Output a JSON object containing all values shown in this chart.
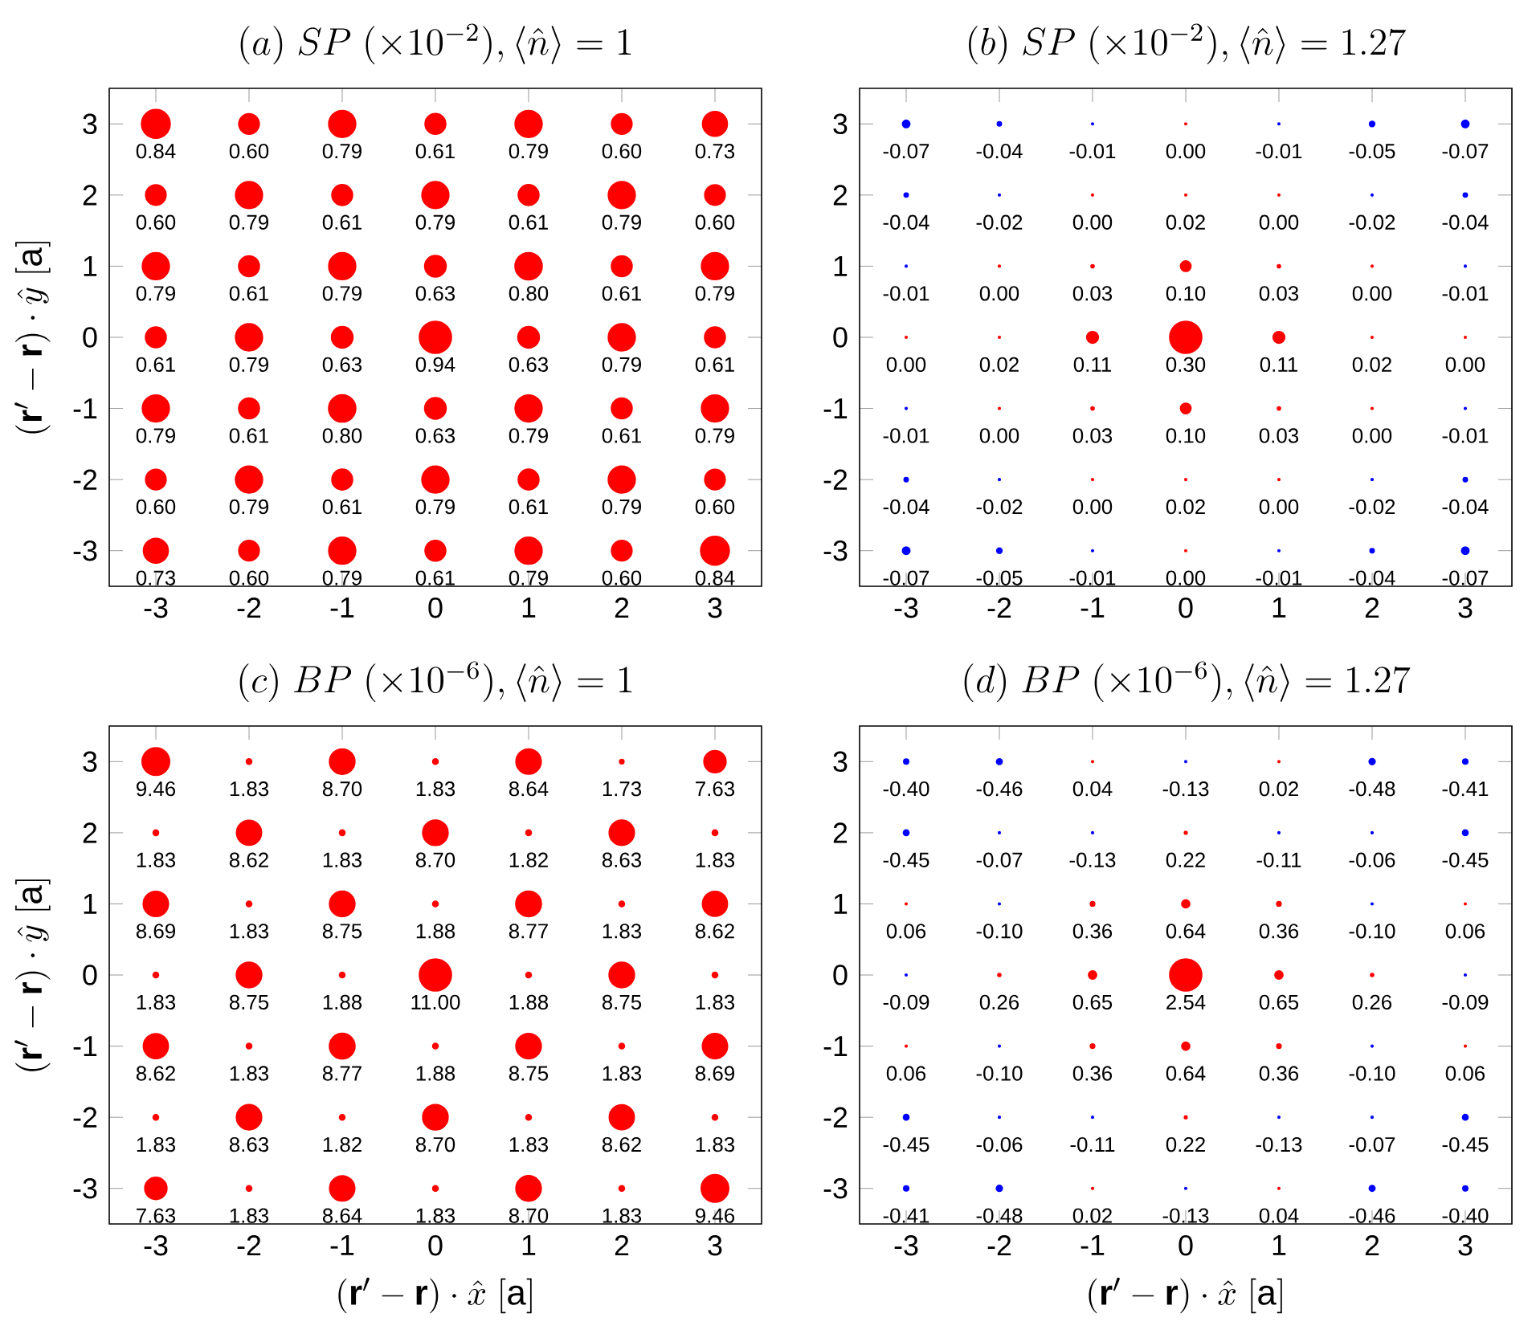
{
  "chart_data": [
    {
      "type": "bubble",
      "title": "(a)\\ SP\\ (\\times 10^{-2}),\\langle \\hat{n}\\rangle = 1",
      "ylabel": "(\\mathbf{r}'-\\mathbf{r})\\cdot\\hat{y}\\ [\\mathrm{a}]",
      "x": [
        -3,
        -2,
        -1,
        0,
        1,
        2,
        3
      ],
      "xlim": [
        -3.5,
        3.5
      ],
      "ylim": [
        -3.5,
        3.5
      ],
      "xticks": [
        -3,
        -2,
        -1,
        0,
        1,
        2,
        3
      ],
      "yticks": [
        -3,
        -2,
        -1,
        0,
        1,
        2,
        3
      ],
      "series": [
        {
          "values": [
            3,
            3,
            3,
            3,
            3,
            3,
            3
          ],
          "sizes": [
            0.8,
            0.41,
            0.71,
            0.42,
            0.71,
            0.41,
            0.6
          ],
          "colors": [
            "#ff0000",
            "#ff0000",
            "#ff0000",
            "#ff0000",
            "#ff0000",
            "#ff0000",
            "#ff0000"
          ]
        },
        {
          "values": [
            2,
            2,
            2,
            2,
            2,
            2,
            2
          ],
          "sizes": [
            0.41,
            0.71,
            0.42,
            0.71,
            0.42,
            0.71,
            0.41
          ],
          "colors": [
            "#ff0000",
            "#ff0000",
            "#ff0000",
            "#ff0000",
            "#ff0000",
            "#ff0000",
            "#ff0000"
          ]
        },
        {
          "values": [
            1,
            1,
            1,
            1,
            1,
            1,
            1
          ],
          "sizes": [
            0.71,
            0.42,
            0.71,
            0.45,
            0.72,
            0.42,
            0.71
          ],
          "colors": [
            "#ff0000",
            "#ff0000",
            "#ff0000",
            "#ff0000",
            "#ff0000",
            "#ff0000",
            "#ff0000"
          ]
        },
        {
          "values": [
            0,
            0,
            0,
            0,
            0,
            0,
            0
          ],
          "sizes": [
            0.42,
            0.71,
            0.45,
            1,
            0.45,
            0.71,
            0.42
          ],
          "colors": [
            "#ff0000",
            "#ff0000",
            "#ff0000",
            "#ff0000",
            "#ff0000",
            "#ff0000",
            "#ff0000"
          ]
        },
        {
          "values": [
            -1,
            -1,
            -1,
            -1,
            -1,
            -1,
            -1
          ],
          "sizes": [
            0.71,
            0.42,
            0.72,
            0.45,
            0.71,
            0.42,
            0.71
          ],
          "colors": [
            "#ff0000",
            "#ff0000",
            "#ff0000",
            "#ff0000",
            "#ff0000",
            "#ff0000",
            "#ff0000"
          ]
        },
        {
          "values": [
            -2,
            -2,
            -2,
            -2,
            -2,
            -2,
            -2
          ],
          "sizes": [
            0.41,
            0.71,
            0.42,
            0.71,
            0.42,
            0.71,
            0.41
          ],
          "colors": [
            "#ff0000",
            "#ff0000",
            "#ff0000",
            "#ff0000",
            "#ff0000",
            "#ff0000",
            "#ff0000"
          ]
        },
        {
          "values": [
            -3,
            -3,
            -3,
            -3,
            -3,
            -3,
            -3
          ],
          "sizes": [
            0.6,
            0.41,
            0.71,
            0.42,
            0.71,
            0.41,
            0.8
          ],
          "colors": [
            "#ff0000",
            "#ff0000",
            "#ff0000",
            "#ff0000",
            "#ff0000",
            "#ff0000",
            "#ff0000"
          ]
        }
      ],
      "annotations": [
        {
          "text": "0.84",
          "x": -3,
          "y": 3
        },
        {
          "text": "0.60",
          "x": -2,
          "y": 3
        },
        {
          "text": "0.79",
          "x": -1,
          "y": 3
        },
        {
          "text": "0.61",
          "x": 0,
          "y": 3
        },
        {
          "text": "0.79",
          "x": 1,
          "y": 3
        },
        {
          "text": "0.60",
          "x": 2,
          "y": 3
        },
        {
          "text": "0.73",
          "x": 3,
          "y": 3
        },
        {
          "text": "0.60",
          "x": -3,
          "y": 2
        },
        {
          "text": "0.79",
          "x": -2,
          "y": 2
        },
        {
          "text": "0.61",
          "x": -1,
          "y": 2
        },
        {
          "text": "0.79",
          "x": 0,
          "y": 2
        },
        {
          "text": "0.61",
          "x": 1,
          "y": 2
        },
        {
          "text": "0.79",
          "x": 2,
          "y": 2
        },
        {
          "text": "0.60",
          "x": 3,
          "y": 2
        },
        {
          "text": "0.79",
          "x": -3,
          "y": 1
        },
        {
          "text": "0.61",
          "x": -2,
          "y": 1
        },
        {
          "text": "0.79",
          "x": -1,
          "y": 1
        },
        {
          "text": "0.63",
          "x": 0,
          "y": 1
        },
        {
          "text": "0.80",
          "x": 1,
          "y": 1
        },
        {
          "text": "0.61",
          "x": 2,
          "y": 1
        },
        {
          "text": "0.79",
          "x": 3,
          "y": 1
        },
        {
          "text": "0.61",
          "x": -3,
          "y": 0
        },
        {
          "text": "0.79",
          "x": -2,
          "y": 0
        },
        {
          "text": "0.63",
          "x": -1,
          "y": 0
        },
        {
          "text": "0.94",
          "x": 0,
          "y": 0
        },
        {
          "text": "0.63",
          "x": 1,
          "y": 0
        },
        {
          "text": "0.79",
          "x": 2,
          "y": 0
        },
        {
          "text": "0.61",
          "x": 3,
          "y": 0
        },
        {
          "text": "0.79",
          "x": -3,
          "y": -1
        },
        {
          "text": "0.61",
          "x": -2,
          "y": -1
        },
        {
          "text": "0.80",
          "x": -1,
          "y": -1
        },
        {
          "text": "0.63",
          "x": 0,
          "y": -1
        },
        {
          "text": "0.79",
          "x": 1,
          "y": -1
        },
        {
          "text": "0.61",
          "x": 2,
          "y": -1
        },
        {
          "text": "0.79",
          "x": 3,
          "y": -1
        },
        {
          "text": "0.60",
          "x": -3,
          "y": -2
        },
        {
          "text": "0.79",
          "x": -2,
          "y": -2
        },
        {
          "text": "0.61",
          "x": -1,
          "y": -2
        },
        {
          "text": "0.79",
          "x": 0,
          "y": -2
        },
        {
          "text": "0.61",
          "x": 1,
          "y": -2
        },
        {
          "text": "0.79",
          "x": 2,
          "y": -2
        },
        {
          "text": "0.60",
          "x": 3,
          "y": -2
        },
        {
          "text": "0.73",
          "x": -3,
          "y": -3
        },
        {
          "text": "0.60",
          "x": -2,
          "y": -3
        },
        {
          "text": "0.79",
          "x": -1,
          "y": -3
        },
        {
          "text": "0.61",
          "x": 0,
          "y": -3
        },
        {
          "text": "0.79",
          "x": 1,
          "y": -3
        },
        {
          "text": "0.60",
          "x": 2,
          "y": -3
        },
        {
          "text": "0.84",
          "x": 3,
          "y": -3
        }
      ]
    },
    {
      "type": "bubble",
      "title": "(b)\\ SP\\ (\\times 10^{-2}),\\langle \\hat{n}\\rangle = 1.27",
      "x": [
        -3,
        -2,
        -1,
        0,
        1,
        2,
        3
      ],
      "xlim": [
        -3.5,
        3.5
      ],
      "ylim": [
        -3.5,
        3.5
      ],
      "xticks": [
        -3,
        -2,
        -1,
        0,
        1,
        2,
        3
      ],
      "yticks": [
        -3,
        -2,
        -1,
        0,
        1,
        2,
        3
      ],
      "series": [
        {
          "values": [
            3,
            3,
            3,
            3,
            3,
            3,
            3
          ],
          "sizes": [
            0.054,
            0.018,
            0.004,
            0.004,
            0.004,
            0.028,
            0.054
          ],
          "colors": [
            "#0000ff",
            "#0000ff",
            "#0000ff",
            "#ff0000",
            "#0000ff",
            "#0000ff",
            "#0000ff"
          ]
        },
        {
          "values": [
            2,
            2,
            2,
            2,
            2,
            2,
            2
          ],
          "sizes": [
            0.018,
            0.004,
            0.004,
            0.004,
            0.004,
            0.004,
            0.018
          ],
          "colors": [
            "#0000ff",
            "#0000ff",
            "#ff0000",
            "#ff0000",
            "#ff0000",
            "#0000ff",
            "#0000ff"
          ]
        },
        {
          "values": [
            1,
            1,
            1,
            1,
            1,
            1,
            1
          ],
          "sizes": [
            0.004,
            0.004,
            0.01,
            0.11,
            0.01,
            0.004,
            0.004
          ],
          "colors": [
            "#0000ff",
            "#ff0000",
            "#ff0000",
            "#ff0000",
            "#ff0000",
            "#ff0000",
            "#0000ff"
          ]
        },
        {
          "values": [
            0,
            0,
            0,
            0,
            0,
            0,
            0
          ],
          "sizes": [
            0.004,
            0.004,
            0.134,
            1,
            0.134,
            0.004,
            0.004
          ],
          "colors": [
            "#ff0000",
            "#ff0000",
            "#ff0000",
            "#ff0000",
            "#ff0000",
            "#ff0000",
            "#ff0000"
          ]
        },
        {
          "values": [
            -1,
            -1,
            -1,
            -1,
            -1,
            -1,
            -1
          ],
          "sizes": [
            0.004,
            0.004,
            0.01,
            0.11,
            0.01,
            0.004,
            0.004
          ],
          "colors": [
            "#0000ff",
            "#ff0000",
            "#ff0000",
            "#ff0000",
            "#ff0000",
            "#ff0000",
            "#0000ff"
          ]
        },
        {
          "values": [
            -2,
            -2,
            -2,
            -2,
            -2,
            -2,
            -2
          ],
          "sizes": [
            0.018,
            0.004,
            0.004,
            0.004,
            0.004,
            0.004,
            0.018
          ],
          "colors": [
            "#0000ff",
            "#0000ff",
            "#ff0000",
            "#ff0000",
            "#ff0000",
            "#0000ff",
            "#0000ff"
          ]
        },
        {
          "values": [
            -3,
            -3,
            -3,
            -3,
            -3,
            -3,
            -3
          ],
          "sizes": [
            0.054,
            0.028,
            0.004,
            0.004,
            0.004,
            0.018,
            0.054
          ],
          "colors": [
            "#0000ff",
            "#0000ff",
            "#0000ff",
            "#ff0000",
            "#0000ff",
            "#0000ff",
            "#0000ff"
          ]
        }
      ],
      "annotations": [
        {
          "text": "-0.07",
          "x": -3,
          "y": 3
        },
        {
          "text": "-0.04",
          "x": -2,
          "y": 3
        },
        {
          "text": "-0.01",
          "x": -1,
          "y": 3
        },
        {
          "text": "0.00",
          "x": 0,
          "y": 3
        },
        {
          "text": "-0.01",
          "x": 1,
          "y": 3
        },
        {
          "text": "-0.05",
          "x": 2,
          "y": 3
        },
        {
          "text": "-0.07",
          "x": 3,
          "y": 3
        },
        {
          "text": "-0.04",
          "x": -3,
          "y": 2
        },
        {
          "text": "-0.02",
          "x": -2,
          "y": 2
        },
        {
          "text": "0.00",
          "x": -1,
          "y": 2
        },
        {
          "text": "0.02",
          "x": 0,
          "y": 2
        },
        {
          "text": "0.00",
          "x": 1,
          "y": 2
        },
        {
          "text": "-0.02",
          "x": 2,
          "y": 2
        },
        {
          "text": "-0.04",
          "x": 3,
          "y": 2
        },
        {
          "text": "-0.01",
          "x": -3,
          "y": 1
        },
        {
          "text": "0.00",
          "x": -2,
          "y": 1
        },
        {
          "text": "0.03",
          "x": -1,
          "y": 1
        },
        {
          "text": "0.10",
          "x": 0,
          "y": 1
        },
        {
          "text": "0.03",
          "x": 1,
          "y": 1
        },
        {
          "text": "0.00",
          "x": 2,
          "y": 1
        },
        {
          "text": "-0.01",
          "x": 3,
          "y": 1
        },
        {
          "text": "0.00",
          "x": -3,
          "y": 0
        },
        {
          "text": "0.02",
          "x": -2,
          "y": 0
        },
        {
          "text": "0.11",
          "x": -1,
          "y": 0
        },
        {
          "text": "0.30",
          "x": 0,
          "y": 0
        },
        {
          "text": "0.11",
          "x": 1,
          "y": 0
        },
        {
          "text": "0.02",
          "x": 2,
          "y": 0
        },
        {
          "text": "0.00",
          "x": 3,
          "y": 0
        },
        {
          "text": "-0.01",
          "x": -3,
          "y": -1
        },
        {
          "text": "0.00",
          "x": -2,
          "y": -1
        },
        {
          "text": "0.03",
          "x": -1,
          "y": -1
        },
        {
          "text": "0.10",
          "x": 0,
          "y": -1
        },
        {
          "text": "0.03",
          "x": 1,
          "y": -1
        },
        {
          "text": "0.00",
          "x": 2,
          "y": -1
        },
        {
          "text": "-0.01",
          "x": 3,
          "y": -1
        },
        {
          "text": "-0.04",
          "x": -3,
          "y": -2
        },
        {
          "text": "-0.02",
          "x": -2,
          "y": -2
        },
        {
          "text": "0.00",
          "x": -1,
          "y": -2
        },
        {
          "text": "0.02",
          "x": 0,
          "y": -2
        },
        {
          "text": "0.00",
          "x": 1,
          "y": -2
        },
        {
          "text": "-0.02",
          "x": 2,
          "y": -2
        },
        {
          "text": "-0.04",
          "x": 3,
          "y": -2
        },
        {
          "text": "-0.07",
          "x": -3,
          "y": -3
        },
        {
          "text": "-0.05",
          "x": -2,
          "y": -3
        },
        {
          "text": "-0.01",
          "x": -1,
          "y": -3
        },
        {
          "text": "0.00",
          "x": 0,
          "y": -3
        },
        {
          "text": "-0.01",
          "x": 1,
          "y": -3
        },
        {
          "text": "-0.04",
          "x": 2,
          "y": -3
        },
        {
          "text": "-0.07",
          "x": 3,
          "y": -3
        }
      ]
    },
    {
      "type": "bubble",
      "title": "(c)\\ BP\\ (\\times 10^{-6}),\\langle \\hat{n}\\rangle = 1",
      "xlabel": "(\\mathbf{r}'-\\mathbf{r})\\cdot\\hat{x}\\ [\\mathrm{a}]",
      "ylabel": "(\\mathbf{r}'-\\mathbf{r})\\cdot\\hat{y}\\ [\\mathrm{a}]",
      "x": [
        -3,
        -2,
        -1,
        0,
        1,
        2,
        3
      ],
      "xlim": [
        -3.5,
        3.5
      ],
      "ylim": [
        -3.5,
        3.5
      ],
      "xticks": [
        -3,
        -2,
        -1,
        0,
        1,
        2,
        3
      ],
      "yticks": [
        -3,
        -2,
        -1,
        0,
        1,
        2,
        3
      ],
      "series": [
        {
          "values": [
            3,
            3,
            3,
            3,
            3,
            3,
            3
          ],
          "sizes": [
            0.74,
            0.03,
            0.63,
            0.03,
            0.62,
            0.02,
            0.48
          ],
          "colors": [
            "#ff0000",
            "#ff0000",
            "#ff0000",
            "#ff0000",
            "#ff0000",
            "#ff0000",
            "#ff0000"
          ]
        },
        {
          "values": [
            2,
            2,
            2,
            2,
            2,
            2,
            2
          ],
          "sizes": [
            0.03,
            0.61,
            0.03,
            0.63,
            0.03,
            0.62,
            0.03
          ],
          "colors": [
            "#ff0000",
            "#ff0000",
            "#ff0000",
            "#ff0000",
            "#ff0000",
            "#ff0000",
            "#ff0000"
          ]
        },
        {
          "values": [
            1,
            1,
            1,
            1,
            1,
            1,
            1
          ],
          "sizes": [
            0.62,
            0.03,
            0.63,
            0.03,
            0.64,
            0.03,
            0.61
          ],
          "colors": [
            "#ff0000",
            "#ff0000",
            "#ff0000",
            "#ff0000",
            "#ff0000",
            "#ff0000",
            "#ff0000"
          ]
        },
        {
          "values": [
            0,
            0,
            0,
            0,
            0,
            0,
            0
          ],
          "sizes": [
            0.03,
            0.63,
            0.03,
            1,
            0.03,
            0.63,
            0.03
          ],
          "colors": [
            "#ff0000",
            "#ff0000",
            "#ff0000",
            "#ff0000",
            "#ff0000",
            "#ff0000",
            "#ff0000"
          ]
        },
        {
          "values": [
            -1,
            -1,
            -1,
            -1,
            -1,
            -1,
            -1
          ],
          "sizes": [
            0.61,
            0.03,
            0.64,
            0.03,
            0.63,
            0.03,
            0.62
          ],
          "colors": [
            "#ff0000",
            "#ff0000",
            "#ff0000",
            "#ff0000",
            "#ff0000",
            "#ff0000",
            "#ff0000"
          ]
        },
        {
          "values": [
            -2,
            -2,
            -2,
            -2,
            -2,
            -2,
            -2
          ],
          "sizes": [
            0.03,
            0.62,
            0.03,
            0.63,
            0.03,
            0.61,
            0.03
          ],
          "colors": [
            "#ff0000",
            "#ff0000",
            "#ff0000",
            "#ff0000",
            "#ff0000",
            "#ff0000",
            "#ff0000"
          ]
        },
        {
          "values": [
            -3,
            -3,
            -3,
            -3,
            -3,
            -3,
            -3
          ],
          "sizes": [
            0.48,
            0.03,
            0.62,
            0.03,
            0.63,
            0.03,
            0.74
          ],
          "colors": [
            "#ff0000",
            "#ff0000",
            "#ff0000",
            "#ff0000",
            "#ff0000",
            "#ff0000",
            "#ff0000"
          ]
        }
      ],
      "annotations": [
        {
          "text": "9.46",
          "x": -3,
          "y": 3
        },
        {
          "text": "1.83",
          "x": -2,
          "y": 3
        },
        {
          "text": "8.70",
          "x": -1,
          "y": 3
        },
        {
          "text": "1.83",
          "x": 0,
          "y": 3
        },
        {
          "text": "8.64",
          "x": 1,
          "y": 3
        },
        {
          "text": "1.73",
          "x": 2,
          "y": 3
        },
        {
          "text": "7.63",
          "x": 3,
          "y": 3
        },
        {
          "text": "1.83",
          "x": -3,
          "y": 2
        },
        {
          "text": "8.62",
          "x": -2,
          "y": 2
        },
        {
          "text": "1.83",
          "x": -1,
          "y": 2
        },
        {
          "text": "8.70",
          "x": 0,
          "y": 2
        },
        {
          "text": "1.82",
          "x": 1,
          "y": 2
        },
        {
          "text": "8.63",
          "x": 2,
          "y": 2
        },
        {
          "text": "1.83",
          "x": 3,
          "y": 2
        },
        {
          "text": "8.69",
          "x": -3,
          "y": 1
        },
        {
          "text": "1.83",
          "x": -2,
          "y": 1
        },
        {
          "text": "8.75",
          "x": -1,
          "y": 1
        },
        {
          "text": "1.88",
          "x": 0,
          "y": 1
        },
        {
          "text": "8.77",
          "x": 1,
          "y": 1
        },
        {
          "text": "1.83",
          "x": 2,
          "y": 1
        },
        {
          "text": "8.62",
          "x": 3,
          "y": 1
        },
        {
          "text": "1.83",
          "x": -3,
          "y": 0
        },
        {
          "text": "8.75",
          "x": -2,
          "y": 0
        },
        {
          "text": "1.88",
          "x": -1,
          "y": 0
        },
        {
          "text": "11.00",
          "x": 0,
          "y": 0
        },
        {
          "text": "1.88",
          "x": 1,
          "y": 0
        },
        {
          "text": "8.75",
          "x": 2,
          "y": 0
        },
        {
          "text": "1.83",
          "x": 3,
          "y": 0
        },
        {
          "text": "8.62",
          "x": -3,
          "y": -1
        },
        {
          "text": "1.83",
          "x": -2,
          "y": -1
        },
        {
          "text": "8.77",
          "x": -1,
          "y": -1
        },
        {
          "text": "1.88",
          "x": 0,
          "y": -1
        },
        {
          "text": "8.75",
          "x": 1,
          "y": -1
        },
        {
          "text": "1.83",
          "x": 2,
          "y": -1
        },
        {
          "text": "8.69",
          "x": 3,
          "y": -1
        },
        {
          "text": "1.83",
          "x": -3,
          "y": -2
        },
        {
          "text": "8.63",
          "x": -2,
          "y": -2
        },
        {
          "text": "1.82",
          "x": -1,
          "y": -2
        },
        {
          "text": "8.70",
          "x": 0,
          "y": -2
        },
        {
          "text": "1.83",
          "x": 1,
          "y": -2
        },
        {
          "text": "8.62",
          "x": 2,
          "y": -2
        },
        {
          "text": "1.83",
          "x": 3,
          "y": -2
        },
        {
          "text": "7.63",
          "x": -3,
          "y": -3
        },
        {
          "text": "1.83",
          "x": -2,
          "y": -3
        },
        {
          "text": "8.64",
          "x": -1,
          "y": -3
        },
        {
          "text": "1.83",
          "x": 0,
          "y": -3
        },
        {
          "text": "8.70",
          "x": 1,
          "y": -3
        },
        {
          "text": "1.83",
          "x": 2,
          "y": -3
        },
        {
          "text": "9.46",
          "x": 3,
          "y": -3
        }
      ]
    },
    {
      "type": "bubble",
      "title": "(d)\\ BP\\ (\\times 10^{-6}),\\langle \\hat{n}\\rangle = 1.27",
      "xlabel": "(\\mathbf{r}'-\\mathbf{r})\\cdot\\hat{x}\\ [\\mathrm{a}]",
      "x": [
        -3,
        -2,
        -1,
        0,
        1,
        2,
        3
      ],
      "xlim": [
        -3.5,
        3.5
      ],
      "ylim": [
        -3.5,
        3.5
      ],
      "xticks": [
        -3,
        -2,
        -1,
        0,
        1,
        2,
        3
      ],
      "yticks": [
        -3,
        -2,
        -1,
        0,
        1,
        2,
        3
      ],
      "series": [
        {
          "values": [
            3,
            3,
            3,
            3,
            3,
            3,
            3
          ],
          "sizes": [
            0.025,
            0.033,
            0.004,
            0.004,
            0.004,
            0.036,
            0.026
          ],
          "colors": [
            "#0000ff",
            "#0000ff",
            "#ff0000",
            "#0000ff",
            "#ff0000",
            "#0000ff",
            "#0000ff"
          ]
        },
        {
          "values": [
            2,
            2,
            2,
            2,
            2,
            2,
            2
          ],
          "sizes": [
            0.031,
            0.004,
            0.004,
            0.008,
            0.004,
            0.004,
            0.031
          ],
          "colors": [
            "#0000ff",
            "#0000ff",
            "#0000ff",
            "#ff0000",
            "#0000ff",
            "#0000ff",
            "#0000ff"
          ]
        },
        {
          "values": [
            1,
            1,
            1,
            1,
            1,
            1,
            1
          ],
          "sizes": [
            0.004,
            0.004,
            0.02,
            0.063,
            0.02,
            0.004,
            0.004
          ],
          "colors": [
            "#ff0000",
            "#0000ff",
            "#ff0000",
            "#ff0000",
            "#ff0000",
            "#0000ff",
            "#ff0000"
          ]
        },
        {
          "values": [
            0,
            0,
            0,
            0,
            0,
            0,
            0
          ],
          "sizes": [
            0.004,
            0.01,
            0.065,
            1,
            0.065,
            0.01,
            0.004
          ],
          "colors": [
            "#0000ff",
            "#ff0000",
            "#ff0000",
            "#ff0000",
            "#ff0000",
            "#ff0000",
            "#0000ff"
          ]
        },
        {
          "values": [
            -1,
            -1,
            -1,
            -1,
            -1,
            -1,
            -1
          ],
          "sizes": [
            0.004,
            0.004,
            0.02,
            0.063,
            0.02,
            0.004,
            0.004
          ],
          "colors": [
            "#ff0000",
            "#0000ff",
            "#ff0000",
            "#ff0000",
            "#ff0000",
            "#0000ff",
            "#ff0000"
          ]
        },
        {
          "values": [
            -2,
            -2,
            -2,
            -2,
            -2,
            -2,
            -2
          ],
          "sizes": [
            0.031,
            0.004,
            0.004,
            0.008,
            0.004,
            0.004,
            0.031
          ],
          "colors": [
            "#0000ff",
            "#0000ff",
            "#0000ff",
            "#ff0000",
            "#0000ff",
            "#0000ff",
            "#0000ff"
          ]
        },
        {
          "values": [
            -3,
            -3,
            -3,
            -3,
            -3,
            -3,
            -3
          ],
          "sizes": [
            0.026,
            0.036,
            0.004,
            0.004,
            0.004,
            0.033,
            0.025
          ],
          "colors": [
            "#0000ff",
            "#0000ff",
            "#ff0000",
            "#0000ff",
            "#ff0000",
            "#0000ff",
            "#0000ff"
          ]
        }
      ],
      "annotations": [
        {
          "text": "-0.40",
          "x": -3,
          "y": 3
        },
        {
          "text": "-0.46",
          "x": -2,
          "y": 3
        },
        {
          "text": "0.04",
          "x": -1,
          "y": 3
        },
        {
          "text": "-0.13",
          "x": 0,
          "y": 3
        },
        {
          "text": "0.02",
          "x": 1,
          "y": 3
        },
        {
          "text": "-0.48",
          "x": 2,
          "y": 3
        },
        {
          "text": "-0.41",
          "x": 3,
          "y": 3
        },
        {
          "text": "-0.45",
          "x": -3,
          "y": 2
        },
        {
          "text": "-0.07",
          "x": -2,
          "y": 2
        },
        {
          "text": "-0.13",
          "x": -1,
          "y": 2
        },
        {
          "text": "0.22",
          "x": 0,
          "y": 2
        },
        {
          "text": "-0.11",
          "x": 1,
          "y": 2
        },
        {
          "text": "-0.06",
          "x": 2,
          "y": 2
        },
        {
          "text": "-0.45",
          "x": 3,
          "y": 2
        },
        {
          "text": "0.06",
          "x": -3,
          "y": 1
        },
        {
          "text": "-0.10",
          "x": -2,
          "y": 1
        },
        {
          "text": "0.36",
          "x": -1,
          "y": 1
        },
        {
          "text": "0.64",
          "x": 0,
          "y": 1
        },
        {
          "text": "0.36",
          "x": 1,
          "y": 1
        },
        {
          "text": "-0.10",
          "x": 2,
          "y": 1
        },
        {
          "text": "0.06",
          "x": 3,
          "y": 1
        },
        {
          "text": "-0.09",
          "x": -3,
          "y": 0
        },
        {
          "text": "0.26",
          "x": -2,
          "y": 0
        },
        {
          "text": "0.65",
          "x": -1,
          "y": 0
        },
        {
          "text": "2.54",
          "x": 0,
          "y": 0
        },
        {
          "text": "0.65",
          "x": 1,
          "y": 0
        },
        {
          "text": "0.26",
          "x": 2,
          "y": 0
        },
        {
          "text": "-0.09",
          "x": 3,
          "y": 0
        },
        {
          "text": "0.06",
          "x": -3,
          "y": -1
        },
        {
          "text": "-0.10",
          "x": -2,
          "y": -1
        },
        {
          "text": "0.36",
          "x": -1,
          "y": -1
        },
        {
          "text": "0.64",
          "x": 0,
          "y": -1
        },
        {
          "text": "0.36",
          "x": 1,
          "y": -1
        },
        {
          "text": "-0.10",
          "x": 2,
          "y": -1
        },
        {
          "text": "0.06",
          "x": 3,
          "y": -1
        },
        {
          "text": "-0.45",
          "x": -3,
          "y": -2
        },
        {
          "text": "-0.06",
          "x": -2,
          "y": -2
        },
        {
          "text": "-0.11",
          "x": -1,
          "y": -2
        },
        {
          "text": "0.22",
          "x": 0,
          "y": -2
        },
        {
          "text": "-0.13",
          "x": 1,
          "y": -2
        },
        {
          "text": "-0.07",
          "x": 2,
          "y": -2
        },
        {
          "text": "-0.45",
          "x": 3,
          "y": -2
        },
        {
          "text": "-0.41",
          "x": -3,
          "y": -3
        },
        {
          "text": "-0.48",
          "x": -2,
          "y": -3
        },
        {
          "text": "0.02",
          "x": -1,
          "y": -3
        },
        {
          "text": "-0.13",
          "x": 0,
          "y": -3
        },
        {
          "text": "0.04",
          "x": 1,
          "y": -3
        },
        {
          "text": "-0.46",
          "x": 2,
          "y": -3
        },
        {
          "text": "-0.40",
          "x": 3,
          "y": -3
        }
      ]
    }
  ]
}
